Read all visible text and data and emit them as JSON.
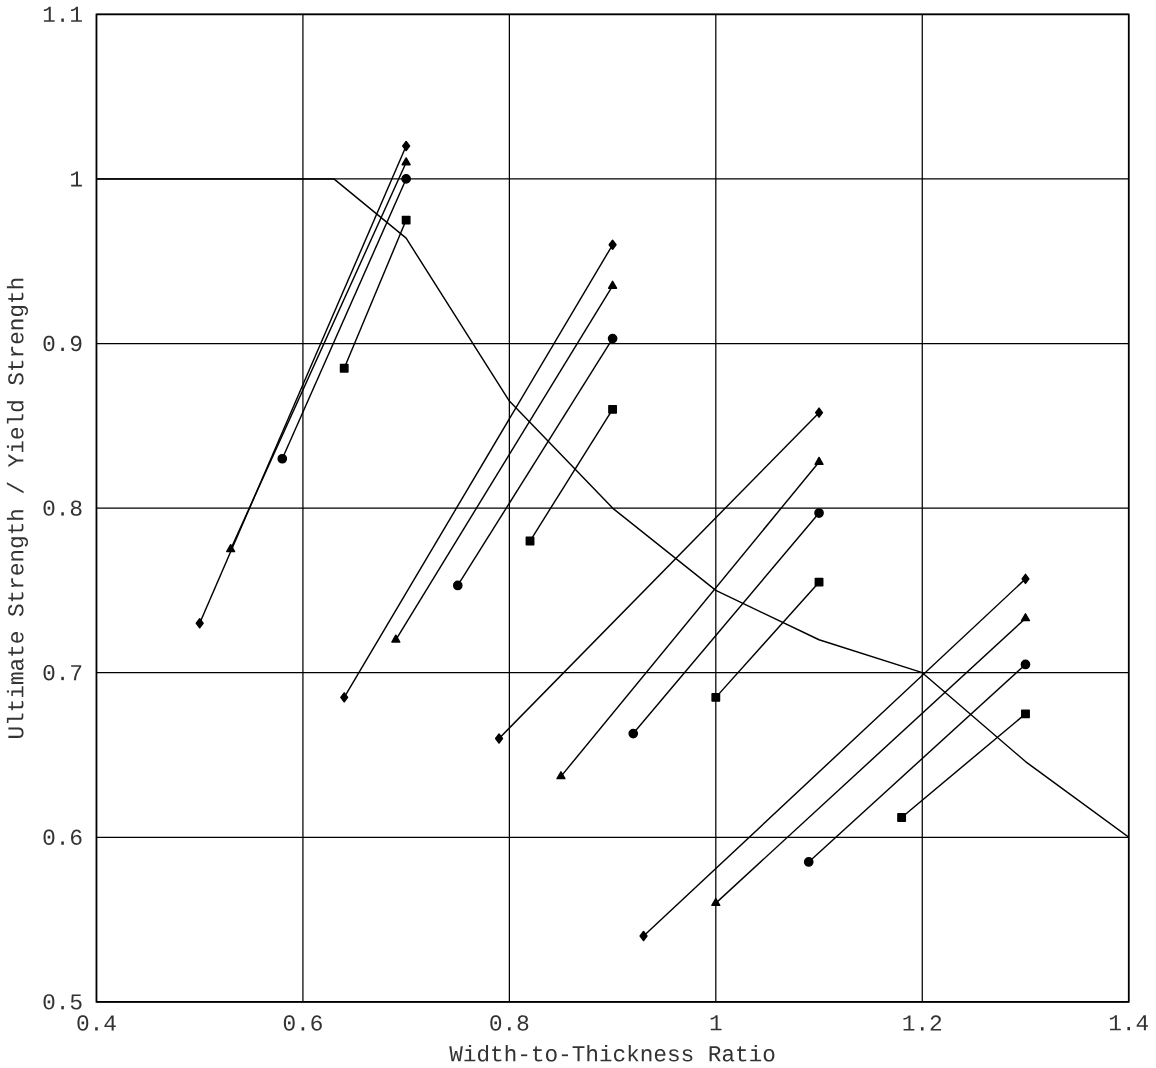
{
  "chart_data": {
    "type": "line",
    "xlabel": "Width-to-Thickness Ratio",
    "ylabel": "Ultimate Strength / Yield Strength",
    "xlim": [
      0.4,
      1.4
    ],
    "ylim": [
      0.5,
      1.1
    ],
    "xticks": [
      0.4,
      0.6,
      0.8,
      1,
      1.2,
      1.4
    ],
    "yticks": [
      0.5,
      0.6,
      0.7,
      0.8,
      0.9,
      1,
      1.1
    ],
    "grid": true,
    "line_style": "solid",
    "series": [
      {
        "color": "#000000",
        "marker": "diamond",
        "x": [
          0.5,
          0.7
        ],
        "values": [
          0.73,
          1.02
        ]
      },
      {
        "color": "#000000",
        "marker": "triangle",
        "x": [
          0.53,
          0.7
        ],
        "values": [
          0.775,
          1.01
        ]
      },
      {
        "color": "#000000",
        "marker": "circle",
        "x": [
          0.58,
          0.7
        ],
        "values": [
          0.83,
          1.0
        ]
      },
      {
        "color": "#000000",
        "marker": "square",
        "x": [
          0.64,
          0.7
        ],
        "values": [
          0.885,
          0.975
        ]
      },
      {
        "color": "#000000",
        "marker": "diamond",
        "x": [
          0.64,
          0.9
        ],
        "values": [
          0.685,
          0.96
        ]
      },
      {
        "color": "#000000",
        "marker": "triangle",
        "x": [
          0.69,
          0.9
        ],
        "values": [
          0.72,
          0.935
        ]
      },
      {
        "color": "#000000",
        "marker": "circle",
        "x": [
          0.75,
          0.9
        ],
        "values": [
          0.753,
          0.903
        ]
      },
      {
        "color": "#000000",
        "marker": "square",
        "x": [
          0.82,
          0.9
        ],
        "values": [
          0.78,
          0.86
        ]
      },
      {
        "color": "#000000",
        "marker": "diamond",
        "x": [
          0.79,
          1.1
        ],
        "values": [
          0.66,
          0.858
        ]
      },
      {
        "color": "#000000",
        "marker": "triangle",
        "x": [
          0.85,
          1.1
        ],
        "values": [
          0.637,
          0.828
        ]
      },
      {
        "color": "#000000",
        "marker": "circle",
        "x": [
          0.92,
          1.1
        ],
        "values": [
          0.663,
          0.797
        ]
      },
      {
        "color": "#000000",
        "marker": "square",
        "x": [
          1.0,
          1.1
        ],
        "values": [
          0.685,
          0.755
        ]
      },
      {
        "color": "#000000",
        "marker": "diamond",
        "x": [
          0.93,
          1.3
        ],
        "values": [
          0.54,
          0.757
        ]
      },
      {
        "color": "#000000",
        "marker": "triangle",
        "x": [
          1.0,
          1.3
        ],
        "values": [
          0.56,
          0.733
        ]
      },
      {
        "color": "#000000",
        "marker": "circle",
        "x": [
          1.09,
          1.3
        ],
        "values": [
          0.585,
          0.705
        ]
      },
      {
        "color": "#000000",
        "marker": "square",
        "x": [
          1.18,
          1.3
        ],
        "values": [
          0.612,
          0.675
        ]
      },
      {
        "color": "#000000",
        "marker": "none",
        "x": [
          0.4,
          0.63,
          0.7,
          0.8,
          0.9,
          1.0,
          1.1,
          1.2,
          1.3,
          1.4
        ],
        "values": [
          1.0,
          1.0,
          0.964,
          0.865,
          0.8,
          0.75,
          0.72,
          0.7,
          0.646,
          0.6
        ]
      }
    ]
  }
}
